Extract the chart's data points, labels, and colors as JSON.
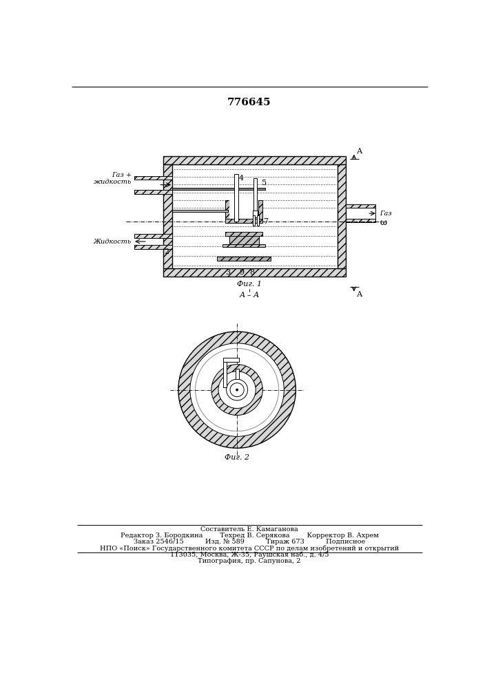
{
  "patent_number": "776645",
  "bg_color": "#ffffff",
  "line_color": "#000000",
  "fig1_label": "Фиг. 1",
  "fig2_label": "Фиг. 2",
  "section_label": "А – А",
  "label_A": "А",
  "label_gas_liq": "Газ +\nжидкость",
  "label_liq": "Жидкость",
  "label_gas": "Газ",
  "label_omega": "ω",
  "footer_line1": "Составитель Е. Камаганова",
  "footer_line2": "Редактор З. Бородкина        Техред В. Серякова        Корректор В. Ахрем",
  "footer_line3": "Заказ 2546/15          Изд. № 589          Тираж 673          Подписное",
  "footer_line4": "НПО «Поиск» Государственного комитета СССР по делам изобретений и открытий",
  "footer_line5": "113035, Москва, Ж-35, Раушская наб., д. 4/5",
  "footer_line6": "Типография, пр. Сапунова, 2"
}
